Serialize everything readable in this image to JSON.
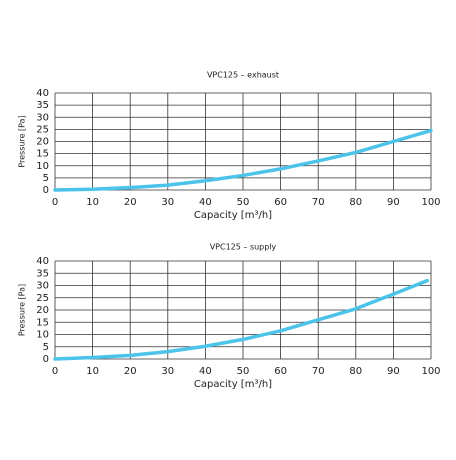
{
  "chart_data": [
    {
      "type": "line",
      "title": "VPC125 – exhaust",
      "x_label": "Capacity [m³/h]",
      "y_label": "Pressure [Pa]",
      "x": [
        0,
        10,
        20,
        30,
        40,
        50,
        60,
        70,
        80,
        90,
        100
      ],
      "series": [
        {
          "name": "VPC125 – exhaust",
          "color": "#4cc3e8",
          "values": [
            0,
            0.3,
            1,
            2,
            3.8,
            6,
            8.7,
            12,
            15.5,
            20,
            24.5
          ]
        }
      ],
      "xlim": [
        0,
        100
      ],
      "xticks": [
        0,
        10,
        20,
        30,
        40,
        50,
        60,
        70,
        80,
        90,
        100
      ],
      "ylim": [
        0,
        40
      ],
      "yticks": [
        0,
        5,
        10,
        15,
        20,
        25,
        30,
        35,
        40
      ],
      "grid": true
    },
    {
      "type": "line",
      "title": "VPC125 – supply",
      "x_label": "Capacity [m³/h]",
      "y_label": "Pressure [Pa]",
      "x": [
        0,
        10,
        20,
        30,
        40,
        50,
        60,
        70,
        80,
        90,
        99
      ],
      "series": [
        {
          "name": "VPC125 – supply",
          "color": "#4cc3e8",
          "values": [
            0,
            0.6,
            1.5,
            3,
            5.2,
            8,
            11.5,
            16,
            20.5,
            26.5,
            32
          ]
        }
      ],
      "xlim": [
        0,
        100
      ],
      "xticks": [
        0,
        10,
        20,
        30,
        40,
        50,
        60,
        70,
        80,
        90,
        100
      ],
      "ylim": [
        0,
        40
      ],
      "yticks": [
        0,
        5,
        10,
        15,
        20,
        25,
        30,
        35,
        40
      ],
      "grid": true
    }
  ]
}
